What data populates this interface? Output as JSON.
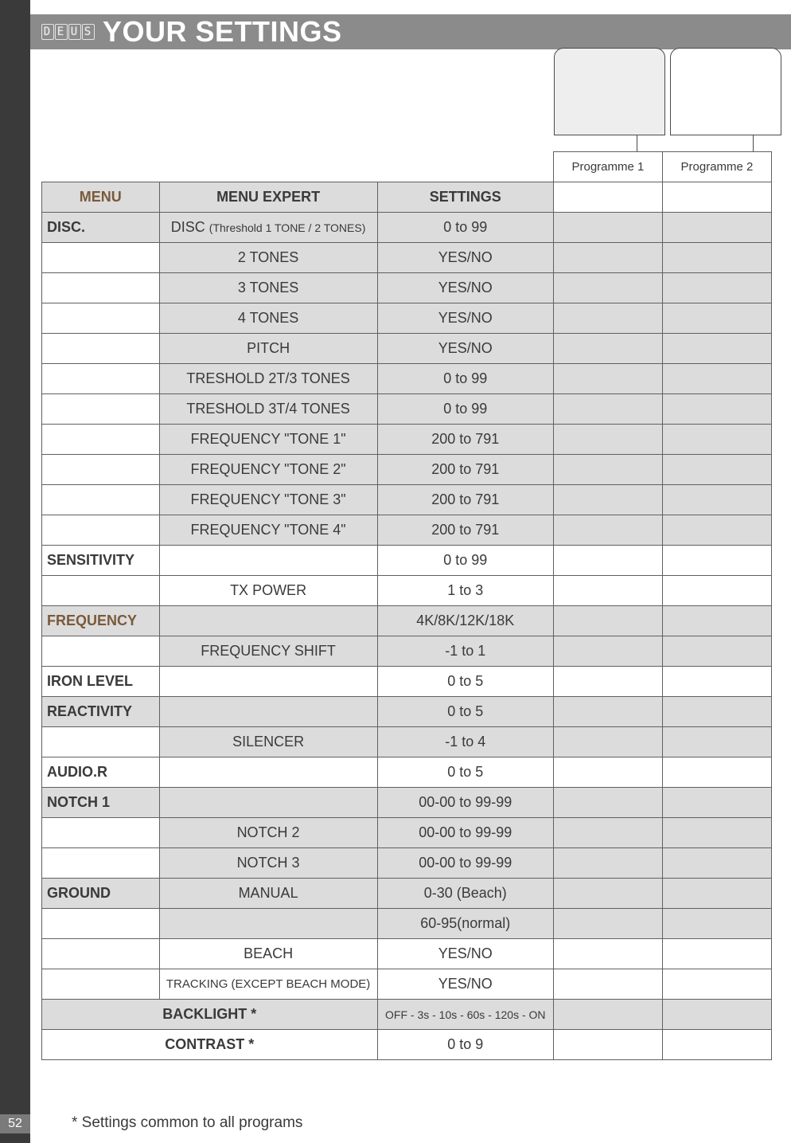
{
  "page_number": "52",
  "header": {
    "brand_glyphs": [
      "D",
      "E",
      "U",
      "S"
    ],
    "title": "YOUR SETTINGS"
  },
  "tabs": {
    "prog1": "Programme 1",
    "prog2": "Programme 2"
  },
  "table": {
    "head": {
      "menu": "MENU",
      "expert": "MENU EXPERT",
      "settings": "SETTINGS"
    },
    "rows": [
      {
        "menu": "DISC.",
        "expert_pre": "DISC ",
        "expert_small": "(Threshold 1 TONE / 2 TONES)",
        "settings": "0 to 99",
        "grey": true,
        "menu_bold": true
      },
      {
        "menu": "",
        "expert": "2 TONES",
        "settings": "YES/NO",
        "grey": true
      },
      {
        "menu": "",
        "expert": "3 TONES",
        "settings": "YES/NO",
        "grey": true
      },
      {
        "menu": "",
        "expert": "4 TONES",
        "settings": "YES/NO",
        "grey": true
      },
      {
        "menu": "",
        "expert": "PITCH",
        "settings": "YES/NO",
        "grey": true
      },
      {
        "menu": "",
        "expert": "TRESHOLD 2T/3 TONES",
        "settings": "0 to 99",
        "grey": true
      },
      {
        "menu": "",
        "expert": "TRESHOLD 3T/4 TONES",
        "settings": "0 to 99",
        "grey": true
      },
      {
        "menu": "",
        "expert": "FREQUENCY \"TONE 1\"",
        "settings": "200 to 791",
        "grey": true
      },
      {
        "menu": "",
        "expert": "FREQUENCY \"TONE 2\"",
        "settings": "200 to 791",
        "grey": true
      },
      {
        "menu": "",
        "expert": "FREQUENCY \"TONE 3\"",
        "settings": "200 to 791",
        "grey": true
      },
      {
        "menu": "",
        "expert": "FREQUENCY \"TONE 4\"",
        "settings": "200 to 791",
        "grey": true
      },
      {
        "menu": "SENSITIVITY",
        "expert": "",
        "settings": "0 to 99",
        "grey": false,
        "menu_bold": true
      },
      {
        "menu": "",
        "expert": "TX POWER",
        "settings": "1 to 3",
        "grey": false
      },
      {
        "menu": "FREQUENCY",
        "expert": "",
        "settings": "4K/8K/12K/18K",
        "grey": true,
        "menu_bold": true,
        "brown_menu": true
      },
      {
        "menu": "",
        "expert": "FREQUENCY SHIFT",
        "settings": "-1 to 1",
        "grey": true
      },
      {
        "menu": "IRON LEVEL",
        "expert": "",
        "settings": "0 to 5",
        "grey": false,
        "menu_bold": true
      },
      {
        "menu": "REACTIVITY",
        "expert": "",
        "settings": "0 to 5",
        "grey": true,
        "menu_bold": true
      },
      {
        "menu": "",
        "expert": "SILENCER",
        "settings": "-1 to 4",
        "grey": true
      },
      {
        "menu": "AUDIO.R",
        "expert": "",
        "settings": "0 to 5",
        "grey": false,
        "menu_bold": true
      },
      {
        "menu": "NOTCH 1",
        "expert": "",
        "settings": "00-00 to 99-99",
        "grey": true,
        "menu_bold": true
      },
      {
        "menu": "",
        "expert": "NOTCH 2",
        "settings": "00-00 to 99-99",
        "grey": true
      },
      {
        "menu": "",
        "expert": "NOTCH 3",
        "settings": "00-00 to 99-99",
        "grey": true
      },
      {
        "menu": "GROUND",
        "expert": "MANUAL",
        "settings": "0-30 (Beach)",
        "grey": true,
        "menu_bold": true
      },
      {
        "menu": "",
        "expert": "",
        "settings": "60-95(normal)",
        "grey": true,
        "noborder_top": true
      },
      {
        "menu": "",
        "expert": "BEACH",
        "settings": "YES/NO",
        "grey": false
      },
      {
        "menu": "",
        "expert": "TRACKING (EXCEPT BEACH MODE)",
        "settings": "YES/NO",
        "grey": false,
        "expert_small_all": true
      },
      {
        "merged": "BACKLIGHT *",
        "settings": "OFF - 3s - 10s - 60s - 120s - ON",
        "grey": true,
        "settings_small": true
      },
      {
        "merged": "CONTRAST *",
        "settings": "0 to 9",
        "grey": false
      }
    ]
  },
  "footnote": "* Settings common to all programs"
}
